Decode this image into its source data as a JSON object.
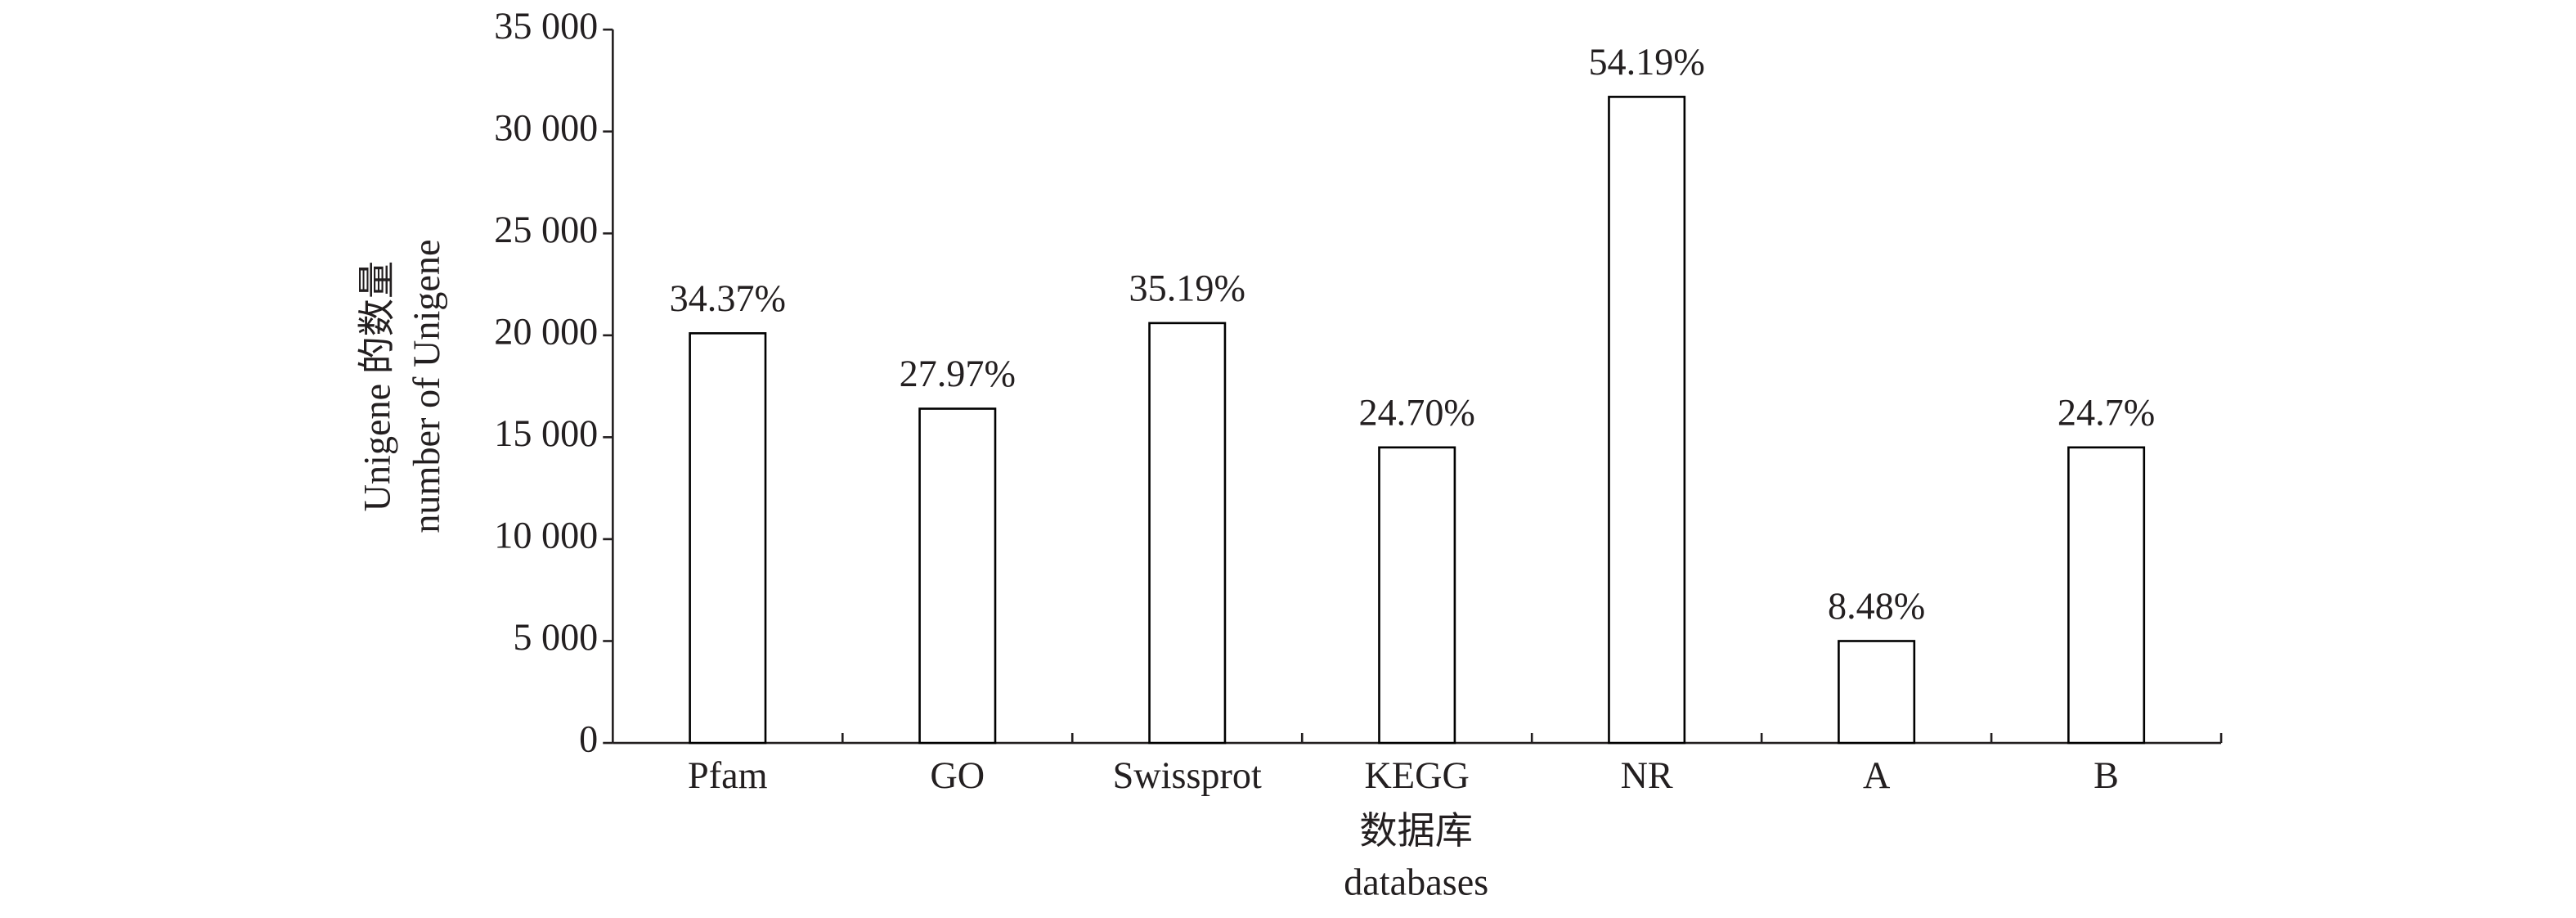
{
  "chart_data": {
    "type": "bar",
    "y_label": [
      "Unigene 的数量",
      "number of Unigene"
    ],
    "x_label": [
      "数据库",
      "databases"
    ],
    "categories": [
      "Pfam",
      "GO",
      "Swissprot",
      "KEGG",
      "NR",
      "A",
      "B"
    ],
    "values": [
      20100,
      16400,
      20600,
      14500,
      31700,
      5000,
      14500
    ],
    "bar_annotations": [
      "34.37%",
      "27.97%",
      "35.19%",
      "24.70%",
      "54.19%",
      "8.48%",
      "24.7%"
    ],
    "color": "#ffffff",
    "edge_color": "#000000",
    "ylim": [
      0,
      35000
    ],
    "yticks": [
      0,
      {
        "value": 5000,
        "label": "5 000"
      },
      {
        "value": 10000,
        "label": "10 000"
      },
      {
        "value": 15000,
        "label": "15 000"
      },
      {
        "value": 20000,
        "label": "20 000"
      },
      {
        "value": 25000,
        "label": "25 000"
      },
      {
        "value": 30000,
        "label": "30 000"
      },
      {
        "value": 35000,
        "label": "35 000"
      }
    ],
    "grid": false
  }
}
